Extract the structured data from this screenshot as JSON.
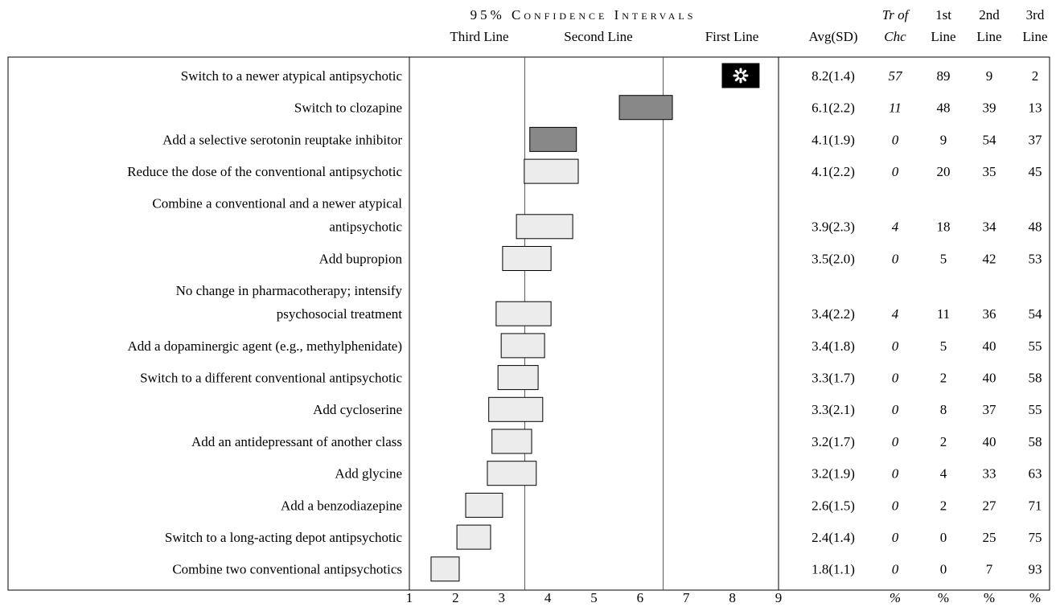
{
  "chart_data": {
    "type": "interval-table",
    "title": "95% Confidence Intervals",
    "tier_labels": [
      "Third Line",
      "Second Line",
      "First Line"
    ],
    "columns": [
      {
        "top": null,
        "bottom": "Avg(SD)"
      },
      {
        "top": "Tr of",
        "bottom": "Chc"
      },
      {
        "top": "1st",
        "bottom": "Line"
      },
      {
        "top": "2nd",
        "bottom": "Line"
      },
      {
        "top": "3rd",
        "bottom": "Line"
      }
    ],
    "units": [
      "%",
      "%",
      "%",
      "%"
    ],
    "xlim": [
      1,
      9
    ],
    "xticks": [
      1,
      2,
      3,
      4,
      5,
      6,
      7,
      8,
      9
    ],
    "tier_boundaries": [
      3.5,
      6.5
    ],
    "tier_colors": {
      "first": "#000000",
      "second": "#888888",
      "third": "#ececec"
    },
    "rows": [
      {
        "label": [
          "Switch to a newer atypical antipsychotic"
        ],
        "tier": "first",
        "ci": [
          7.78,
          8.58
        ],
        "avg_sd": "8.2(1.4)",
        "tr_chc": 57,
        "first": 89,
        "second": 9,
        "third": 2
      },
      {
        "label": [
          "Switch to clozapine"
        ],
        "tier": "second",
        "ci": [
          5.55,
          6.7
        ],
        "avg_sd": "6.1(2.2)",
        "tr_chc": 11,
        "first": 48,
        "second": 39,
        "third": 13
      },
      {
        "label": [
          "Add a selective serotonin reuptake inhibitor"
        ],
        "tier": "second",
        "ci": [
          3.61,
          4.62
        ],
        "avg_sd": "4.1(1.9)",
        "tr_chc": 0,
        "first": 9,
        "second": 54,
        "third": 37
      },
      {
        "label": [
          "Reduce the dose of the conventional antipsychotic"
        ],
        "tier": "third",
        "ci": [
          3.49,
          4.66
        ],
        "avg_sd": "4.1(2.2)",
        "tr_chc": 0,
        "first": 20,
        "second": 35,
        "third": 45
      },
      {
        "label": [
          "Combine a conventional and a newer atypical",
          "antipsychotic"
        ],
        "tier": "third",
        "ci": [
          3.32,
          4.54
        ],
        "avg_sd": "3.9(2.3)",
        "tr_chc": 4,
        "first": 18,
        "second": 34,
        "third": 48
      },
      {
        "label": [
          "Add bupropion"
        ],
        "tier": "third",
        "ci": [
          3.02,
          4.07
        ],
        "avg_sd": "3.5(2.0)",
        "tr_chc": 0,
        "first": 5,
        "second": 42,
        "third": 53
      },
      {
        "label": [
          "No change in pharmacotherapy; intensify",
          "psychosocial treatment"
        ],
        "tier": "third",
        "ci": [
          2.88,
          4.07
        ],
        "avg_sd": "3.4(2.2)",
        "tr_chc": 4,
        "first": 11,
        "second": 36,
        "third": 54
      },
      {
        "label": [
          "Add a dopaminergic agent (e.g., methylphenidate)"
        ],
        "tier": "third",
        "ci": [
          2.99,
          3.93
        ],
        "avg_sd": "3.4(1.8)",
        "tr_chc": 0,
        "first": 5,
        "second": 40,
        "third": 55
      },
      {
        "label": [
          "Switch to a different conventional antipsychotic"
        ],
        "tier": "third",
        "ci": [
          2.92,
          3.79
        ],
        "avg_sd": "3.3(1.7)",
        "tr_chc": 0,
        "first": 2,
        "second": 40,
        "third": 58
      },
      {
        "label": [
          "Add cycloserine"
        ],
        "tier": "third",
        "ci": [
          2.72,
          3.89
        ],
        "avg_sd": "3.3(2.1)",
        "tr_chc": 0,
        "first": 8,
        "second": 37,
        "third": 55
      },
      {
        "label": [
          "Add an antidepressant of another class"
        ],
        "tier": "third",
        "ci": [
          2.79,
          3.65
        ],
        "avg_sd": "3.2(1.7)",
        "tr_chc": 0,
        "first": 2,
        "second": 40,
        "third": 58
      },
      {
        "label": [
          "Add glycine"
        ],
        "tier": "third",
        "ci": [
          2.69,
          3.75
        ],
        "avg_sd": "3.2(1.9)",
        "tr_chc": 0,
        "first": 4,
        "second": 33,
        "third": 63
      },
      {
        "label": [
          "Add a benzodiazepine"
        ],
        "tier": "third",
        "ci": [
          2.22,
          3.02
        ],
        "avg_sd": "2.6(1.5)",
        "tr_chc": 0,
        "first": 2,
        "second": 27,
        "third": 71
      },
      {
        "label": [
          "Switch to a long-acting depot antipsychotic"
        ],
        "tier": "third",
        "ci": [
          2.03,
          2.76
        ],
        "avg_sd": "2.4(1.4)",
        "tr_chc": 0,
        "first": 0,
        "second": 25,
        "third": 75
      },
      {
        "label": [
          "Combine two conventional antipsychotics"
        ],
        "tier": "third",
        "ci": [
          1.47,
          2.08
        ],
        "avg_sd": "1.8(1.1)",
        "tr_chc": 0,
        "first": 0,
        "second": 7,
        "third": 93
      }
    ]
  }
}
